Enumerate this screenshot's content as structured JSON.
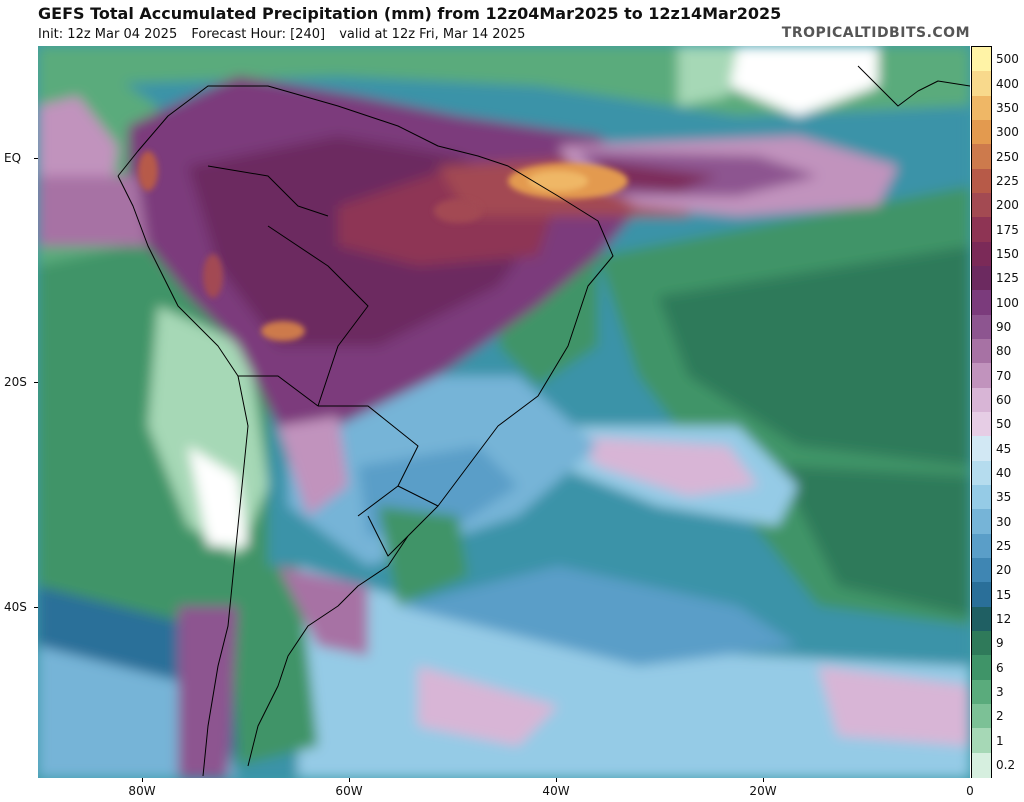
{
  "header": {
    "title": "GEFS Total Accumulated Precipitation (mm) from 12z04Mar2025 to 12z14Mar2025",
    "init": "Init: 12z Mar 04 2025",
    "forecast_hour": "Forecast Hour: [240]",
    "valid": "valid at 12z Fri, Mar 14 2025",
    "brand": "TROPICALTIDBITS.COM"
  },
  "axes": {
    "lat_labels": [
      "EQ",
      "20S",
      "40S"
    ],
    "lon_labels": [
      "80W",
      "60W",
      "40W",
      "20W",
      "0"
    ]
  },
  "colorbar": {
    "labels": [
      "500",
      "400",
      "350",
      "300",
      "250",
      "225",
      "200",
      "175",
      "150",
      "125",
      "100",
      "90",
      "80",
      "70",
      "60",
      "50",
      "45",
      "40",
      "35",
      "30",
      "25",
      "20",
      "15",
      "12",
      "9",
      "6",
      "3",
      "2",
      "1",
      "0.2"
    ],
    "colors": [
      "#fff3a6",
      "#f8d98c",
      "#efb766",
      "#e39a4f",
      "#cd7a4c",
      "#b75a48",
      "#a34a52",
      "#8e3454",
      "#7b2a58",
      "#6c2a60",
      "#7b3b7c",
      "#8d5590",
      "#a772a4",
      "#c193bd",
      "#d8b5d6",
      "#e6cde5",
      "#d2e8f4",
      "#b5dcee",
      "#95cbe6",
      "#76b4d7",
      "#5a9ec8",
      "#3f86b3",
      "#2a6f99",
      "#1f5f63",
      "#2f7a5a",
      "#3f9468",
      "#5aab7c",
      "#7cc196",
      "#a6d8b6",
      "#d6efdf"
    ]
  },
  "map": {
    "type": "precipitation-accumulation",
    "extent": {
      "lon": [
        -90,
        0
      ],
      "lat": [
        8,
        -53
      ]
    },
    "peak_value_mm": "300"
  }
}
